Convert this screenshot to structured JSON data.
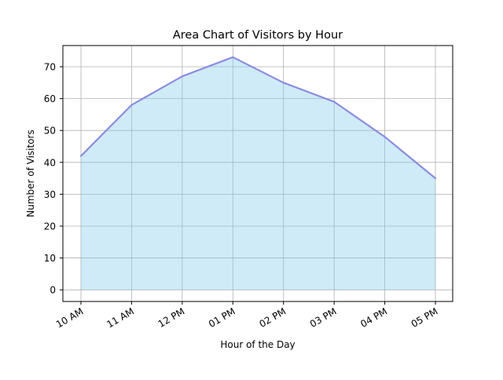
{
  "chart_data": {
    "type": "area",
    "title": "Area Chart of Visitors by Hour",
    "xlabel": "Hour of the Day",
    "ylabel": "Number of Visitors",
    "categories": [
      "10 AM",
      "11 AM",
      "12 PM",
      "01 PM",
      "02 PM",
      "03 PM",
      "04 PM",
      "05 PM"
    ],
    "series": [
      {
        "values": [
          42,
          58,
          67,
          73,
          65,
          59,
          48,
          35
        ]
      }
    ],
    "ylim": [
      -3.65,
      76.65
    ],
    "yticks": [
      0,
      10,
      20,
      30,
      40,
      50,
      60,
      70
    ],
    "grid": true,
    "colors": {
      "fill": "#87ceeb",
      "line": "#8c8ce0",
      "grid": "#b0b0b0"
    }
  }
}
